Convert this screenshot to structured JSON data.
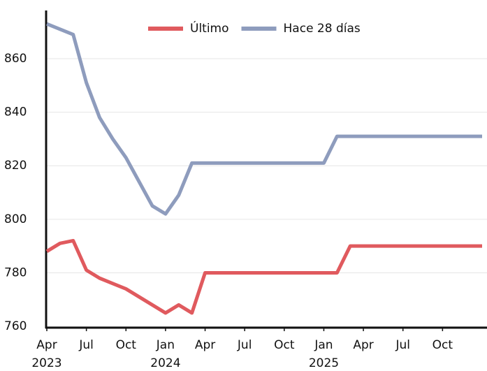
{
  "chart_data": {
    "type": "line",
    "x": [
      "2023-04",
      "2023-05",
      "2023-06",
      "2023-07",
      "2023-08",
      "2023-09",
      "2023-10",
      "2023-11",
      "2023-12",
      "2024-01",
      "2024-02",
      "2024-03",
      "2024-04",
      "2024-05",
      "2024-06",
      "2024-07",
      "2024-08",
      "2024-09",
      "2024-10",
      "2024-11",
      "2024-12",
      "2025-01",
      "2025-02",
      "2025-03",
      "2025-04",
      "2025-05",
      "2025-06",
      "2025-07",
      "2025-08",
      "2025-09",
      "2025-10",
      "2025-11",
      "2025-12",
      "2026-01"
    ],
    "series": [
      {
        "name": "Último",
        "color": "#e05a5e",
        "values": [
          788,
          791,
          792,
          781,
          778,
          776,
          774,
          771,
          768,
          765,
          768,
          765,
          780,
          780,
          780,
          780,
          780,
          780,
          780,
          780,
          780,
          780,
          780,
          790,
          790,
          790,
          790,
          790,
          790,
          790,
          790,
          790,
          790,
          790
        ]
      },
      {
        "name": "Hace 28 días",
        "color": "#8e9cbd",
        "values": [
          873,
          871,
          869,
          851,
          838,
          830,
          823,
          814,
          805,
          802,
          809,
          821,
          821,
          821,
          821,
          821,
          821,
          821,
          821,
          821,
          821,
          821,
          831,
          831,
          831,
          831,
          831,
          831,
          831,
          831,
          831,
          831,
          831,
          831
        ]
      }
    ],
    "xlim": [
      "2023-04",
      "2026-01"
    ],
    "xticks": [
      {
        "value": "2023-04",
        "label": "Apr 2023"
      },
      {
        "value": "2023-07",
        "label": "Jul"
      },
      {
        "value": "2023-10",
        "label": "Oct"
      },
      {
        "value": "2024-01",
        "label": "Jan 2024"
      },
      {
        "value": "2024-04",
        "label": "Apr"
      },
      {
        "value": "2024-07",
        "label": "Jul"
      },
      {
        "value": "2024-10",
        "label": "Oct"
      },
      {
        "value": "2025-01",
        "label": "Jan 2025"
      },
      {
        "value": "2025-04",
        "label": "Apr"
      },
      {
        "value": "2025-07",
        "label": "Jul"
      },
      {
        "value": "2025-10",
        "label": "Oct"
      }
    ],
    "ylim": [
      759.5,
      878
    ],
    "yticks": [
      760,
      780,
      800,
      820,
      840,
      860
    ],
    "grid": true,
    "legend": "top"
  }
}
